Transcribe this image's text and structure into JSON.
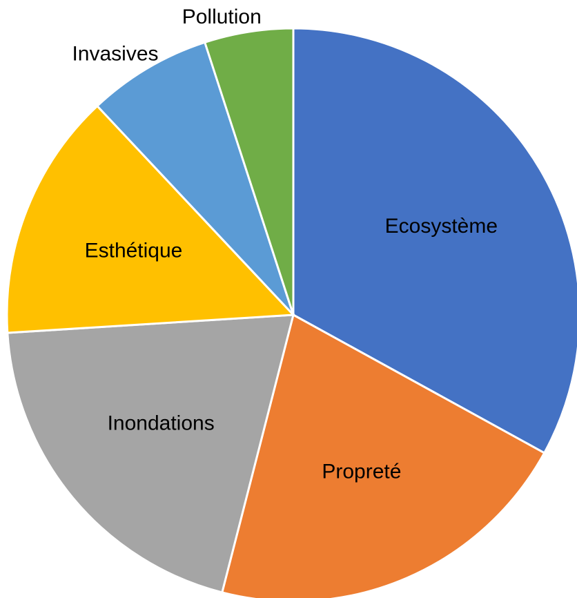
{
  "chart_data": {
    "type": "pie",
    "categories": [
      "Ecosystème",
      "Propreté",
      "Inondations",
      "Esthétique",
      "Invasives",
      "Pollution"
    ],
    "values": [
      33,
      21,
      20,
      14,
      7,
      5
    ],
    "colors": [
      "#4472c4",
      "#ed7d31",
      "#a5a5a5",
      "#ffc000",
      "#5b9bd5",
      "#70ad47"
    ]
  }
}
